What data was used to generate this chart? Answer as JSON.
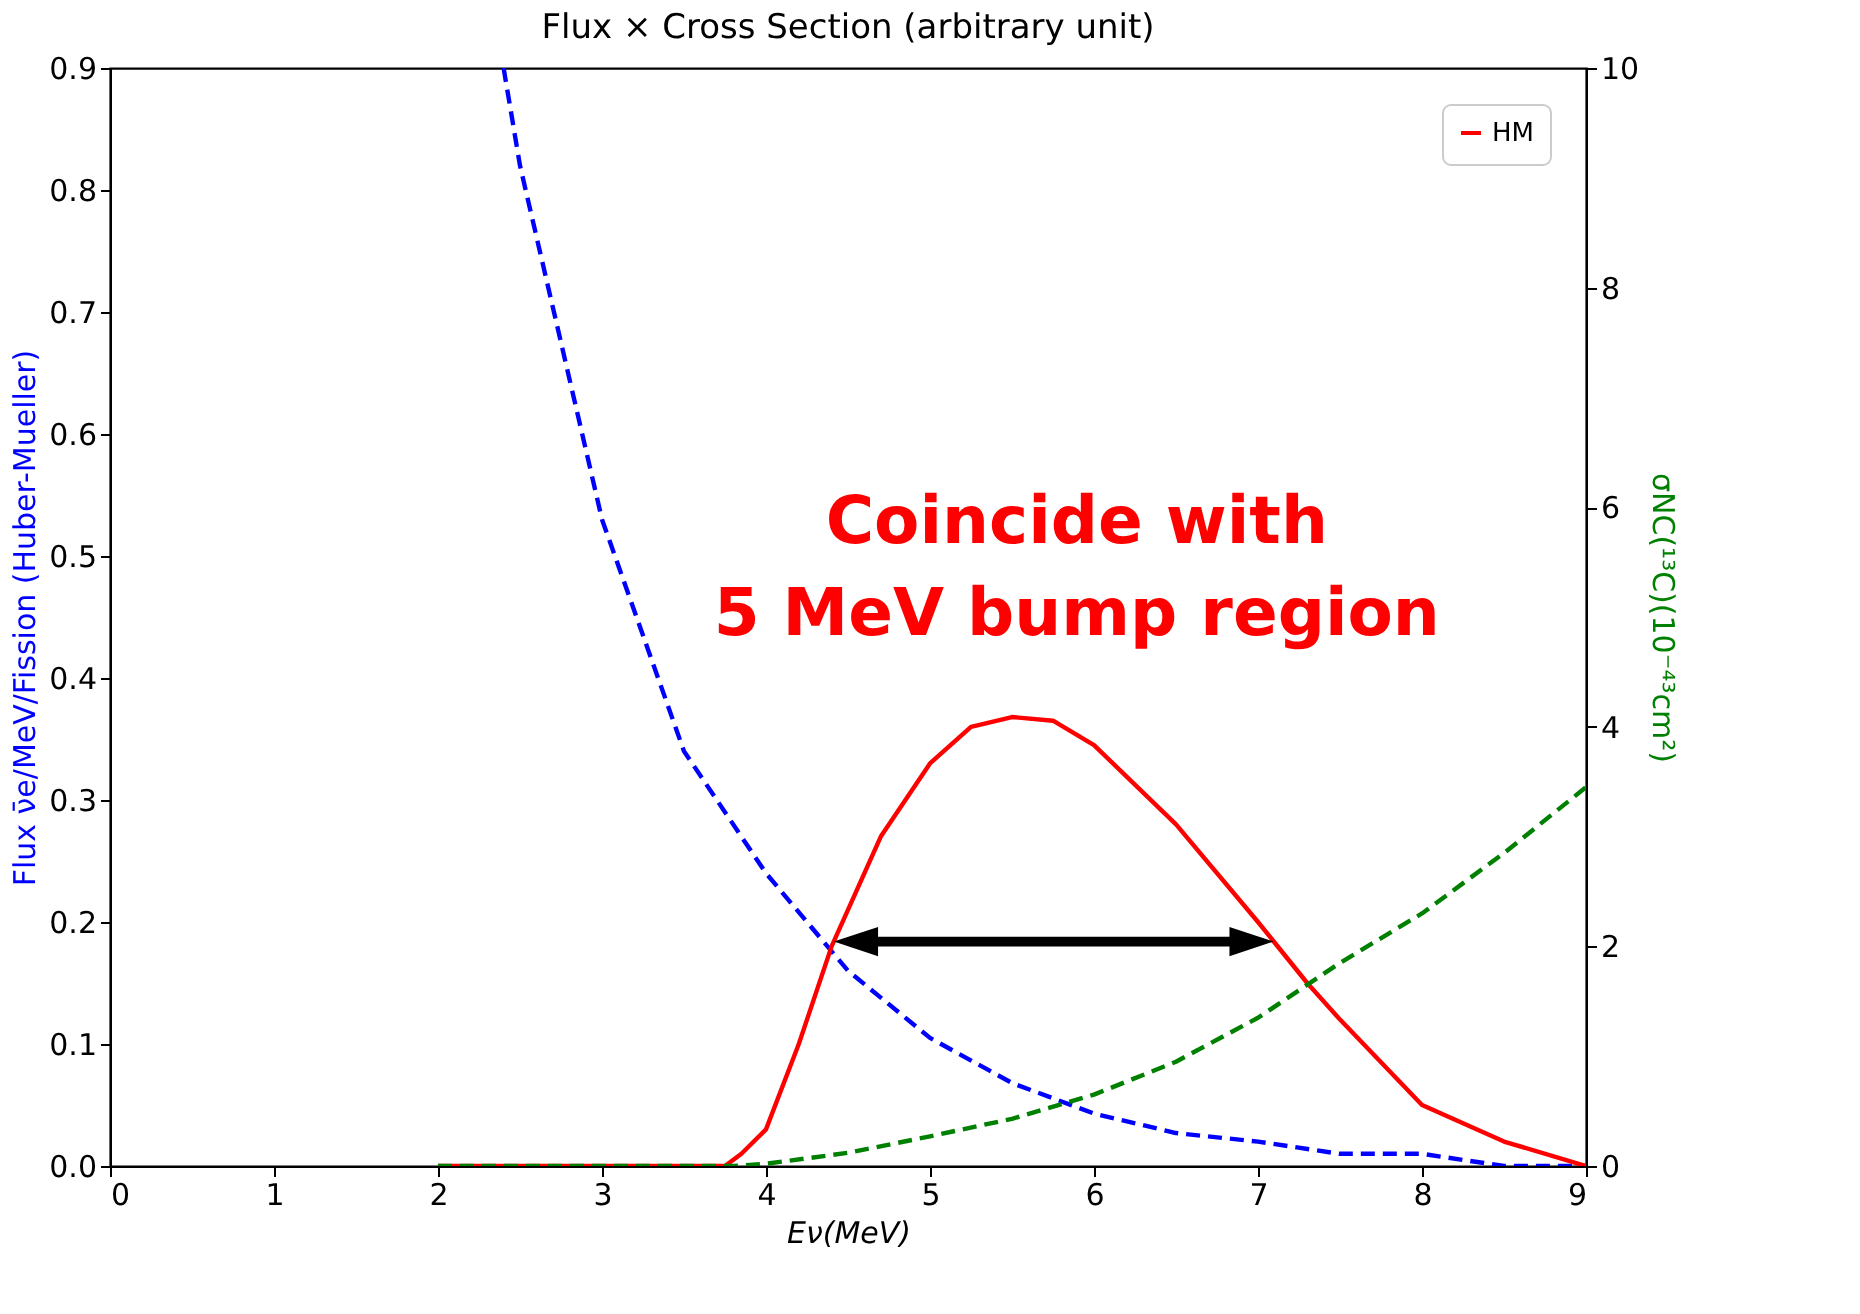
{
  "chart_data": {
    "type": "line",
    "title": "Flux × Cross Section (arbitrary unit)",
    "xlabel": "Eν(MeV)",
    "ylabel": "Flux ν̄e/MeV/Fission (Huber-Mueller)",
    "y2label": "σNC(¹³C)(10⁻⁴³cm²)",
    "series": [
      {
        "color": "#0000ff",
        "line_style": "dashed",
        "x": [
          2.4,
          2.5,
          3,
          3.5,
          4,
          4.5,
          5,
          5.5,
          6,
          6.5,
          7,
          7.5,
          8,
          8.5,
          9
        ],
        "values": [
          0.9,
          0.82,
          0.53,
          0.34,
          0.24,
          0.16,
          0.105,
          0.068,
          0.043,
          0.027,
          0.02,
          0.01,
          0.01,
          0.0,
          0.0
        ]
      },
      {
        "name": "HM",
        "color": "#ff0000",
        "line_style": "solid",
        "x": [
          2,
          3,
          3.75,
          3.85,
          4,
          4.2,
          4.4,
          4.7,
          5,
          5.25,
          5.5,
          5.75,
          6,
          6.5,
          7,
          7.3,
          7.5,
          8,
          8.5,
          9
        ],
        "values": [
          0,
          0,
          0,
          0.01,
          0.03,
          0.1,
          0.18,
          0.27,
          0.33,
          0.36,
          0.368,
          0.365,
          0.345,
          0.28,
          0.2,
          0.15,
          0.12,
          0.05,
          0.02,
          0.0
        ]
      },
      {
        "color": "#008000",
        "line_style": "dashed",
        "axis": "y2",
        "x": [
          2,
          3,
          3.8,
          4,
          4.5,
          5,
          5.5,
          6,
          6.5,
          7,
          7.5,
          8,
          8.5,
          9
        ],
        "values": [
          0,
          0,
          0,
          0.02,
          0.12,
          0.27,
          0.43,
          0.65,
          0.95,
          1.35,
          1.85,
          2.3,
          2.85,
          3.45
        ]
      }
    ],
    "annotations": [
      "Coincide with\n5 MeV bump region"
    ],
    "xlim": [
      0,
      9
    ],
    "xticks": [
      0,
      1,
      2,
      3,
      4,
      5,
      6,
      7,
      8,
      9
    ],
    "ylim": [
      0,
      0.9
    ],
    "yticks": [
      {
        "value": 0,
        "label": "0.0"
      },
      0.1,
      0.2,
      0.3,
      0.4,
      0.5,
      0.6,
      0.7,
      0.8,
      0.9
    ],
    "y2lim": [
      0,
      10
    ],
    "y2ticks": [
      0,
      2,
      4,
      6,
      8,
      10
    ],
    "legend": "top right",
    "grid": false
  }
}
